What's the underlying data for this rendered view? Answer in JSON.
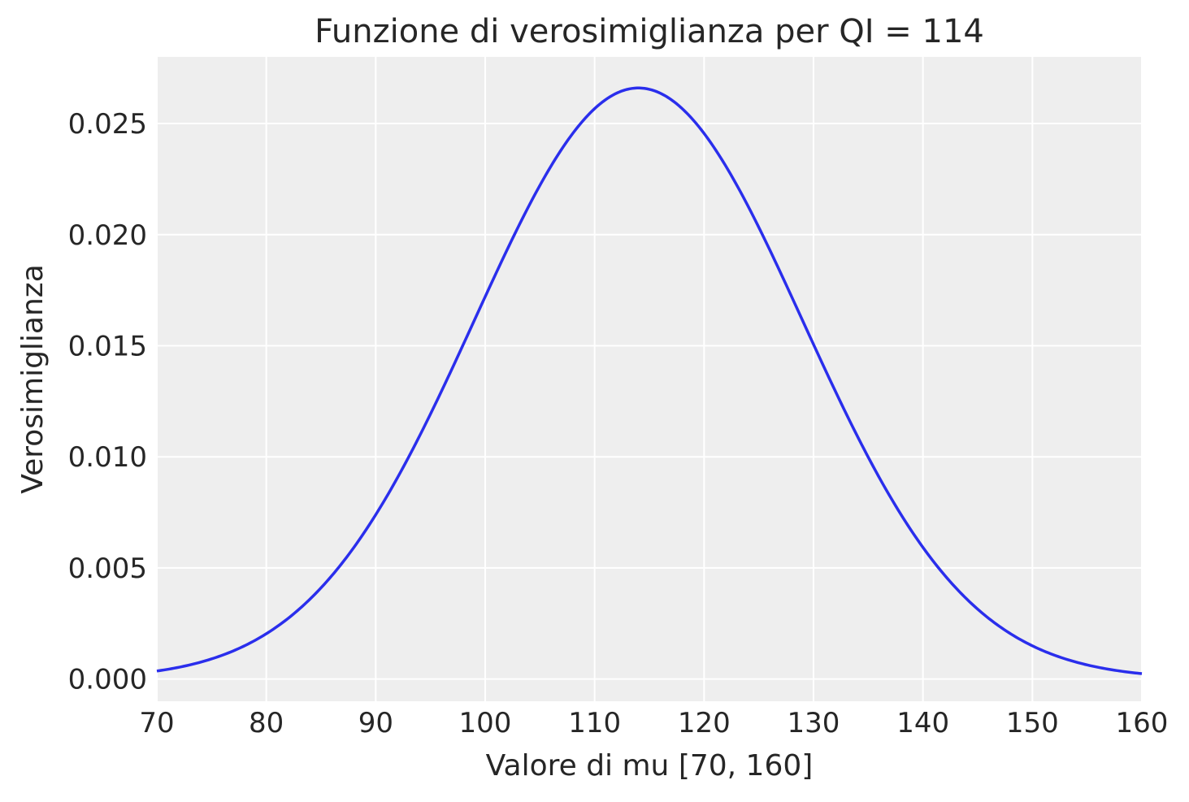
{
  "chart_data": {
    "type": "line",
    "title": "Funzione di verosimiglianza per QI = 114",
    "xlabel": "Valore di mu [70, 160]",
    "ylabel": "Verosimiglianza",
    "xlim": [
      70,
      160
    ],
    "ylim": [
      -0.001,
      0.028
    ],
    "grid": true,
    "x_ticks": [
      70,
      80,
      90,
      100,
      110,
      120,
      130,
      140,
      150,
      160
    ],
    "x_tick_labels": [
      "70",
      "80",
      "90",
      "100",
      "110",
      "120",
      "130",
      "140",
      "150",
      "160"
    ],
    "y_ticks": [
      0.0,
      0.005,
      0.01,
      0.015,
      0.02,
      0.025
    ],
    "y_tick_labels": [
      "0.000",
      "0.005",
      "0.010",
      "0.015",
      "0.020",
      "0.025"
    ],
    "series": [
      {
        "color": "#2a2eec",
        "distribution": "normal",
        "mean": 114,
        "sd": 15,
        "peak": 0.0266,
        "x": [
          70,
          75,
          80,
          85,
          90,
          95,
          100,
          105,
          110,
          114,
          120,
          125,
          130,
          135,
          140,
          145,
          150,
          155,
          160
        ],
        "y": [
          0.00036,
          0.00091,
          0.00203,
          0.00408,
          0.00738,
          0.01198,
          0.01719,
          0.02216,
          0.0257,
          0.0266,
          0.02445,
          0.02084,
          0.01505,
          0.01001,
          0.00587,
          0.00316,
          0.00151,
          0.00063,
          0.00024
        ]
      }
    ],
    "colors": {
      "plot_background": "#eeeeee",
      "grid": "#ffffff",
      "line": "#2a2eec",
      "text": "#262626"
    }
  }
}
